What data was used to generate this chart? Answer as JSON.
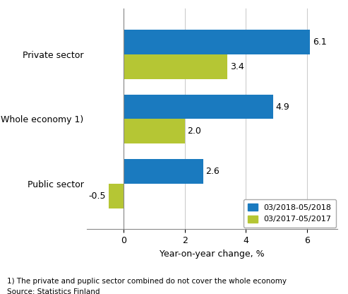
{
  "categories": [
    "Public sector",
    "Whole economy 1)",
    "Private sector"
  ],
  "series": [
    {
      "label": "03/2018-05/2018",
      "color": "#1a7abf",
      "values": [
        2.6,
        4.9,
        6.1
      ]
    },
    {
      "label": "03/2017-05/2017",
      "color": "#b5c634",
      "values": [
        -0.5,
        2.0,
        3.4
      ]
    }
  ],
  "xlim": [
    -1.2,
    7.0
  ],
  "xticks": [
    0,
    2,
    4,
    6
  ],
  "xlabel": "Year-on-year change, %",
  "footnote1": "1) The private and puplic sector combined do not cover the whole economy",
  "footnote2": "Source: Statistics Finland",
  "bar_height": 0.38,
  "background_color": "#ffffff",
  "grid_color": "#cccccc",
  "label_fontsize": 9,
  "tick_fontsize": 9
}
